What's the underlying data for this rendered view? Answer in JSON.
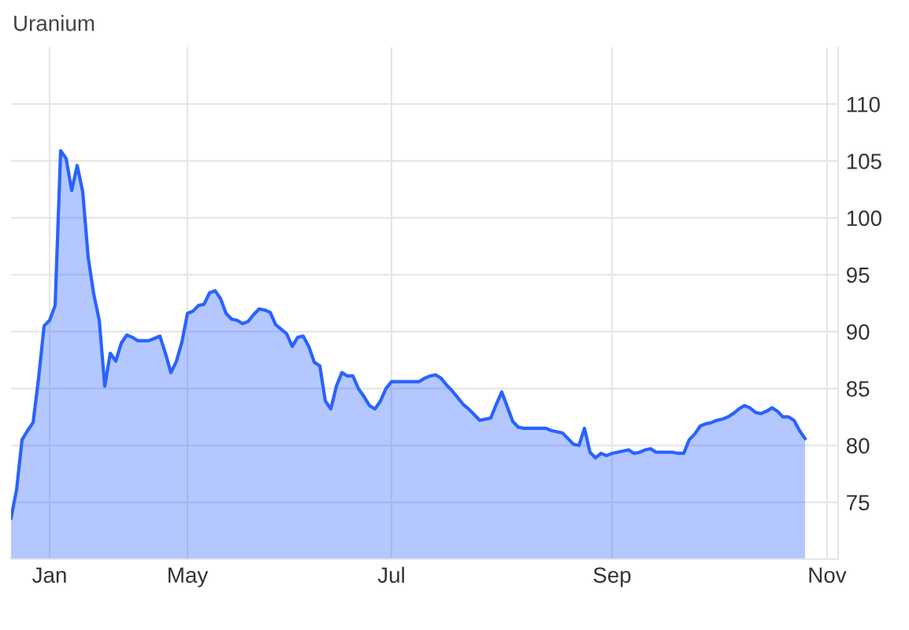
{
  "chart_data": {
    "type": "area",
    "title": "Uranium",
    "categories": [
      null,
      null,
      null,
      null,
      null,
      null,
      null,
      "Jan",
      null,
      null,
      null,
      null,
      null,
      null,
      null,
      null,
      null,
      null,
      null,
      null,
      null,
      null,
      null,
      null,
      null,
      null,
      null,
      null,
      null,
      null,
      null,
      null,
      "May",
      null,
      null,
      null,
      null,
      null,
      null,
      null,
      null,
      null,
      null,
      null,
      null,
      null,
      null,
      null,
      null,
      null,
      null,
      null,
      null,
      null,
      null,
      null,
      null,
      null,
      null,
      null,
      null,
      null,
      null,
      null,
      null,
      null,
      null,
      null,
      null,
      "Jul",
      null,
      null,
      null,
      null,
      null,
      null,
      null,
      null,
      null,
      null,
      null,
      null,
      null,
      null,
      null,
      null,
      null,
      null,
      null,
      null,
      null,
      null,
      null,
      null,
      null,
      null,
      null,
      null,
      null,
      null,
      null,
      null,
      null,
      null,
      null,
      null,
      null,
      null,
      null,
      "Sep",
      null,
      null,
      null,
      null,
      null,
      null,
      null,
      null,
      null,
      null,
      null,
      null,
      null,
      null,
      null,
      null,
      null,
      null,
      null,
      null,
      null,
      null,
      null,
      null,
      null,
      null,
      null,
      null,
      null,
      null,
      null,
      null,
      null,
      null,
      null,
      null,
      null,
      null,
      "Nov",
      null,
      null
    ],
    "series": [
      {
        "color": "#2962ff",
        "values": [
          73.6,
          76.1,
          80.5,
          81.3,
          82.0,
          85.9,
          90.5,
          91.0,
          92.3,
          105.9,
          105.2,
          102.4,
          104.6,
          102.3,
          96.5,
          93.3,
          91.0,
          85.2,
          88.1,
          87.4,
          89.0,
          89.7,
          89.5,
          89.2,
          89.2,
          89.2,
          89.4,
          89.6,
          88.1,
          86.4,
          87.4,
          89.1,
          91.6,
          91.8,
          92.3,
          92.4,
          93.4,
          93.6,
          92.9,
          91.6,
          91.1,
          91.0,
          90.7,
          90.9,
          91.5,
          92.0,
          91.9,
          91.7,
          90.6,
          90.2,
          89.8,
          88.7,
          89.5,
          89.6,
          88.7,
          87.3,
          87.0,
          83.9,
          83.2,
          85.2,
          86.4,
          86.1,
          86.1,
          85.0,
          84.3,
          83.5,
          83.2,
          83.9,
          85.0,
          85.6,
          85.6,
          85.6,
          85.6,
          85.6,
          85.6,
          85.9,
          86.1,
          86.2,
          85.9,
          85.3,
          84.8,
          84.2,
          83.6,
          83.2,
          82.7,
          82.2,
          82.3,
          82.4,
          83.6,
          84.7,
          83.4,
          82.1,
          81.6,
          81.5,
          81.5,
          81.5,
          81.5,
          81.5,
          81.3,
          81.2,
          81.1,
          80.6,
          80.1,
          80.0,
          81.5,
          79.4,
          78.9,
          79.3,
          79.1,
          79.3,
          79.4,
          79.5,
          79.6,
          79.3,
          79.4,
          79.6,
          79.7,
          79.4,
          79.4,
          79.4,
          79.4,
          79.3,
          79.3,
          80.5,
          81.0,
          81.7,
          81.9,
          82.0,
          82.2,
          82.3,
          82.5,
          82.8,
          83.2,
          83.5,
          83.3,
          82.9,
          82.8,
          83.0,
          83.3,
          83.0,
          82.5,
          82.5,
          82.2,
          81.3,
          80.6,
          null,
          null,
          null,
          null,
          null,
          null
        ]
      }
    ],
    "ylim": [
      70,
      115
    ],
    "yticks": [
      75,
      80,
      85,
      90,
      95,
      100,
      105,
      110
    ],
    "grid": true,
    "marker": "none",
    "line_style": "solid"
  }
}
